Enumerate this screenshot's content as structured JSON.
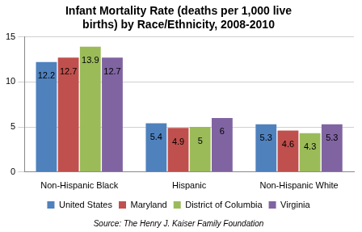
{
  "chart_data": {
    "type": "bar",
    "title": [
      "Infant Mortality Rate (deaths per 1,000 live",
      "births) by Race/Ethnicity, 2008-2010"
    ],
    "caption": "Source: The Henry J. Kaiser Family Foundation",
    "categories": [
      "Non-Hispanic Black",
      "Hispanic",
      "Non-Hispanic White"
    ],
    "series": [
      {
        "name": "United States",
        "color": "#4f81bd",
        "values": [
          12.2,
          5.4,
          5.3
        ]
      },
      {
        "name": "Maryland",
        "color": "#c0504d",
        "values": [
          12.7,
          4.9,
          4.6
        ]
      },
      {
        "name": "District of Columbia",
        "color": "#9bbb59",
        "values": [
          13.9,
          5,
          4.3
        ]
      },
      {
        "name": "Virginia",
        "color": "#8064a2",
        "values": [
          12.7,
          6,
          5.3
        ]
      }
    ],
    "ylim": [
      0,
      15
    ],
    "yticks": [
      0,
      5,
      10,
      15
    ],
    "grid": true,
    "legend": "bottom",
    "data_labels": true
  }
}
